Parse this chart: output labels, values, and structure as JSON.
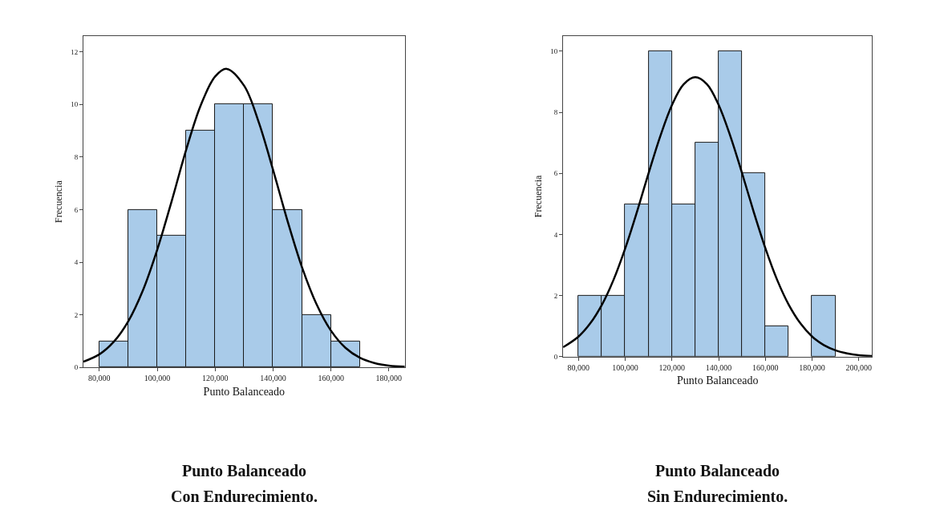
{
  "chart_data": [
    {
      "type": "histogram",
      "xlabel": "Punto Balanceado",
      "ylabel": "Frecuencia",
      "annotations": [
        "Punto Balanceado",
        "Con Endurecimiento."
      ],
      "bins": [
        80000,
        90000,
        100000,
        110000,
        120000,
        130000,
        140000,
        150000,
        160000,
        170000
      ],
      "values": [
        1,
        6,
        5,
        9,
        10,
        10,
        6,
        2,
        1
      ],
      "color": "#a9cbe9",
      "series": [
        {
          "type": "line",
          "color": "#000000",
          "x": [
            74500,
            80000,
            85000,
            90000,
            95000,
            100000,
            105000,
            110000,
            115000,
            120000,
            124000,
            130000,
            135000,
            140000,
            145000,
            150000,
            155000,
            160000,
            165000,
            170000,
            175000,
            180000,
            185500
          ],
          "values": [
            0.22,
            0.5,
            0.98,
            1.76,
            2.92,
            4.48,
            6.33,
            8.28,
            9.96,
            11.06,
            11.35,
            10.71,
            9.34,
            7.51,
            5.57,
            3.81,
            2.41,
            1.4,
            0.75,
            0.37,
            0.17,
            0.07,
            0.03
          ]
        }
      ],
      "xlim": [
        74500,
        185500
      ],
      "xticks": [
        {
          "value": 80000,
          "label": "80,000"
        },
        {
          "value": 100000,
          "label": "100,000"
        },
        {
          "value": 120000,
          "label": "120,000"
        },
        {
          "value": 140000,
          "label": "140,000"
        },
        {
          "value": 160000,
          "label": "160,000"
        },
        {
          "value": 180000,
          "label": "180,000"
        }
      ],
      "ylim": [
        0,
        12.6
      ],
      "yticks": [
        0,
        2,
        4,
        6,
        8,
        10,
        12
      ]
    },
    {
      "type": "histogram",
      "xlabel": "Punto Balanceado",
      "ylabel": "Frecuencia",
      "annotations": [
        "Punto Balanceado",
        "Sin Endurecimiento."
      ],
      "bins": [
        80000,
        90000,
        100000,
        110000,
        120000,
        130000,
        140000,
        150000,
        160000,
        170000,
        180000,
        190000
      ],
      "values": [
        2,
        2,
        5,
        10,
        5,
        7,
        10,
        6,
        1,
        0,
        2
      ],
      "color": "#a9cbe9",
      "series": [
        {
          "type": "line",
          "color": "#000000",
          "x": [
            73400,
            80000,
            85000,
            90000,
            95000,
            100000,
            105000,
            110000,
            115000,
            120000,
            125000,
            130000,
            135000,
            140000,
            145000,
            150000,
            155000,
            160000,
            165000,
            170000,
            175000,
            180000,
            185000,
            190000,
            195000,
            200000,
            205700
          ],
          "values": [
            0.31,
            0.66,
            1.09,
            1.7,
            2.52,
            3.55,
            4.74,
            6.01,
            7.22,
            8.24,
            8.92,
            9.15,
            8.92,
            8.24,
            7.22,
            6.01,
            4.74,
            3.55,
            2.52,
            1.7,
            1.09,
            0.66,
            0.38,
            0.21,
            0.11,
            0.05,
            0.02
          ]
        }
      ],
      "xlim": [
        73400,
        205700
      ],
      "xticks": [
        {
          "value": 80000,
          "label": "80,000"
        },
        {
          "value": 100000,
          "label": "100,000"
        },
        {
          "value": 120000,
          "label": "120,000"
        },
        {
          "value": 140000,
          "label": "140,000"
        },
        {
          "value": 160000,
          "label": "160,000"
        },
        {
          "value": 180000,
          "label": "180,000"
        },
        {
          "value": 200000,
          "label": "200,000"
        }
      ],
      "ylim": [
        0,
        10.5
      ],
      "yticks": [
        0,
        2,
        4,
        6,
        8,
        10
      ]
    }
  ]
}
